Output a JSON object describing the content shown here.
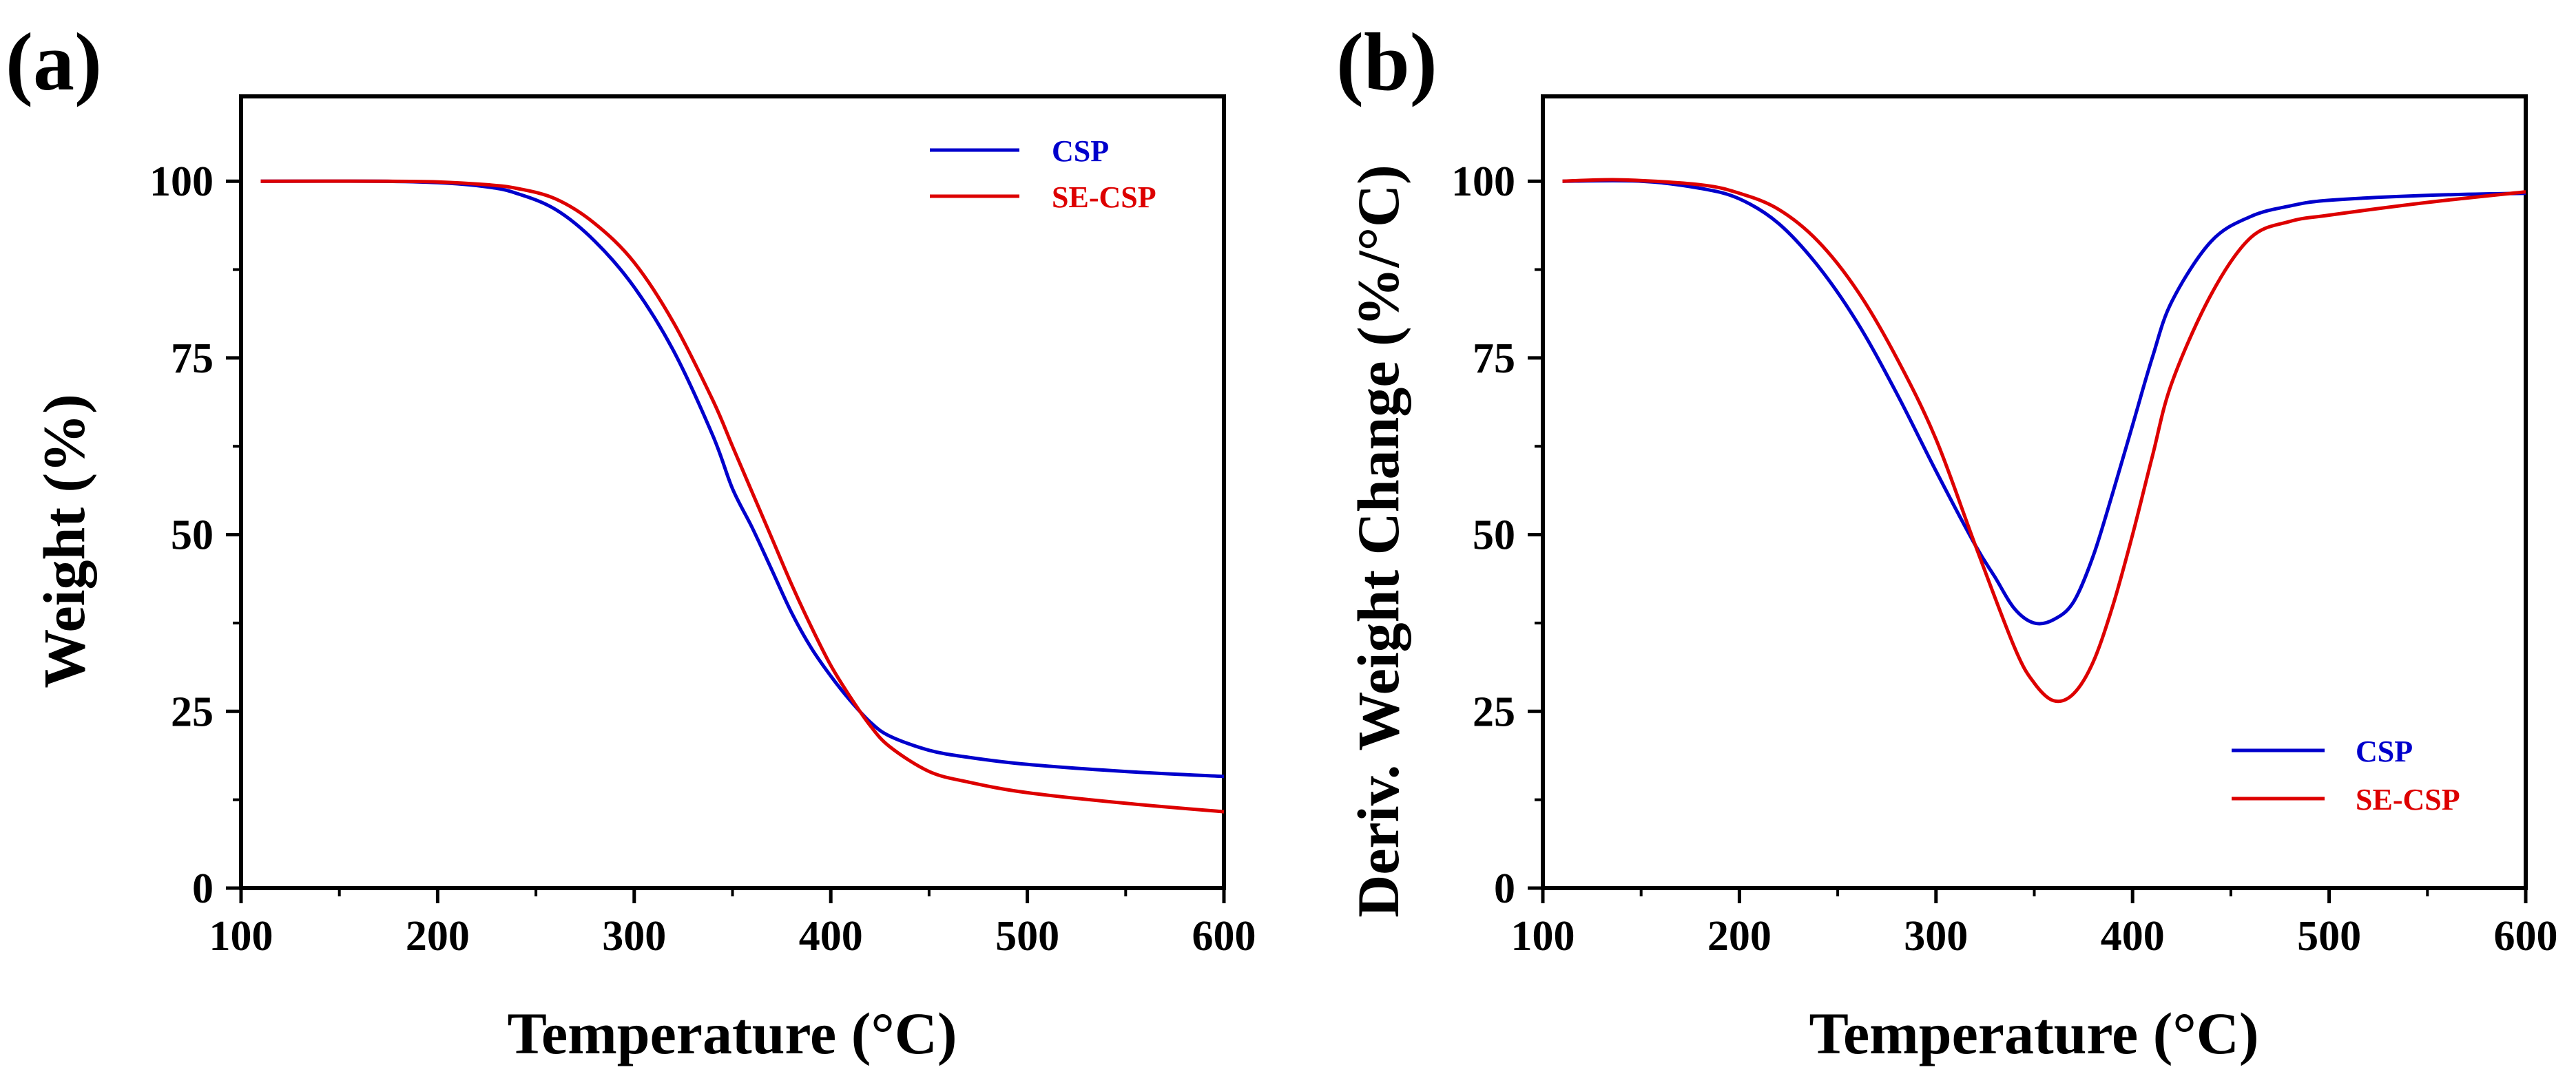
{
  "chart_data": [
    {
      "panel_label": "(a)",
      "type": "line",
      "title": "",
      "xlabel": "Temperature (°C)",
      "ylabel": "Weight (%)",
      "xlim": [
        100,
        600
      ],
      "ylim": [
        0,
        112
      ],
      "xticks": [
        100,
        200,
        300,
        400,
        500,
        600
      ],
      "yticks": [
        0,
        25,
        50,
        75,
        100
      ],
      "grid": false,
      "legend_position": "top-right",
      "series": [
        {
          "name": "CSP",
          "color": "#0000cc",
          "x": [
            110,
            170,
            200,
            225,
            240,
            260,
            280,
            300,
            320,
            340,
            350,
            360,
            370,
            380,
            390,
            400,
            410,
            420,
            430,
            450,
            470,
            500,
            550,
            600
          ],
          "y": [
            100,
            100,
            99.8,
            99.2,
            98.3,
            96,
            91.5,
            85,
            76,
            64,
            56.5,
            51,
            45,
            39,
            34,
            30,
            26.5,
            23.5,
            21.5,
            19.5,
            18.5,
            17.5,
            16.5,
            15.8
          ]
        },
        {
          "name": "SE-CSP",
          "color": "#dd0000",
          "x": [
            110,
            170,
            200,
            225,
            240,
            260,
            280,
            300,
            320,
            340,
            350,
            360,
            370,
            380,
            390,
            400,
            410,
            420,
            430,
            450,
            470,
            500,
            550,
            600
          ],
          "y": [
            100,
            100,
            99.9,
            99.5,
            99,
            97.5,
            94,
            88.5,
            80,
            69,
            62.5,
            56,
            49.5,
            43,
            37,
            31.5,
            27,
            23,
            20,
            16.5,
            15,
            13.5,
            12,
            10.8
          ]
        }
      ]
    },
    {
      "panel_label": "(b)",
      "type": "line",
      "title": "",
      "xlabel": "Temperature (°C)",
      "ylabel": "Deriv. Weight Change (%/°C)",
      "xlim": [
        100,
        600
      ],
      "ylim": [
        0,
        112
      ],
      "xticks": [
        100,
        200,
        300,
        400,
        500,
        600
      ],
      "yticks": [
        0,
        25,
        50,
        75,
        100
      ],
      "grid": false,
      "legend_position": "bottom-right",
      "series": [
        {
          "name": "CSP",
          "color": "#0000cc",
          "x": [
            110,
            150,
            180,
            200,
            220,
            240,
            260,
            280,
            300,
            320,
            330,
            340,
            350,
            360,
            370,
            380,
            390,
            400,
            410,
            420,
            440,
            460,
            480,
            500,
            550,
            600
          ],
          "y": [
            100,
            100,
            99,
            97.5,
            94,
            88,
            80,
            70,
            59,
            48.5,
            44,
            39.5,
            37.5,
            38,
            40.5,
            47,
            56,
            65.5,
            75,
            83,
            91.5,
            95,
            96.5,
            97.3,
            98,
            98.3
          ]
        },
        {
          "name": "SE-CSP",
          "color": "#dd0000",
          "x": [
            110,
            140,
            180,
            200,
            220,
            240,
            260,
            280,
            300,
            320,
            340,
            350,
            360,
            370,
            380,
            390,
            400,
            410,
            420,
            440,
            460,
            480,
            500,
            550,
            600
          ],
          "y": [
            100,
            100.2,
            99.5,
            98.3,
            96,
            91.5,
            84.5,
            75,
            63.5,
            48.5,
            34,
            29,
            26.5,
            27.5,
            32,
            40,
            50,
            61,
            71.5,
            84,
            92,
            94.3,
            95.2,
            97,
            98.5
          ]
        }
      ]
    }
  ]
}
